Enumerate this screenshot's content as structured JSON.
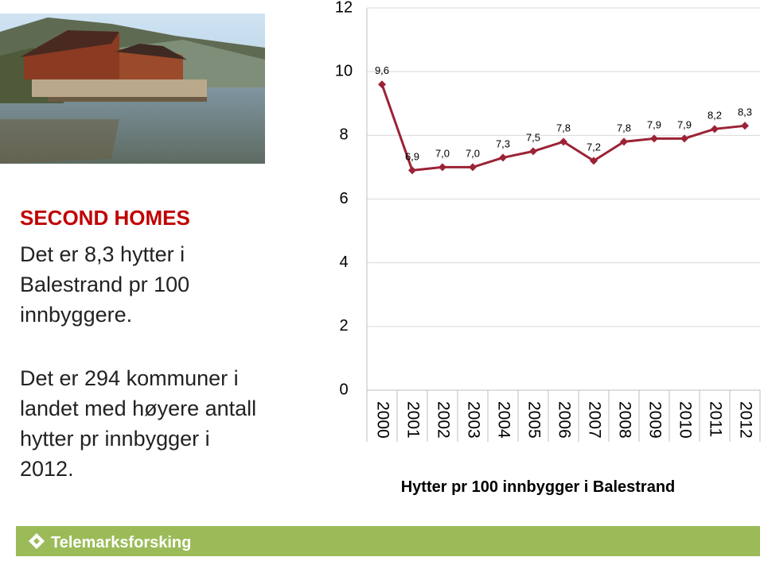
{
  "text": {
    "heading": "SECOND HOMES",
    "paragraph1": [
      "Det er 8,3 hytter i",
      "Balestrand pr 100",
      "innbyggere."
    ],
    "paragraph2": [
      "Det er 294 kommuner i",
      "landet med høyere antall",
      "hytter pr innbygger i",
      "2012."
    ]
  },
  "footer": {
    "logo": "Telemarksforsking"
  },
  "chart_data": {
    "type": "line",
    "x_label": "Hytter pr 100 innbygger i Balestrand",
    "categories": [
      "2000",
      "2001",
      "2002",
      "2003",
      "2004",
      "2005",
      "2006",
      "2007",
      "2008",
      "2009",
      "2010",
      "2011",
      "2012"
    ],
    "values": [
      9.6,
      6.9,
      7.0,
      7.0,
      7.3,
      7.5,
      7.8,
      7.2,
      7.8,
      7.9,
      7.9,
      8.2,
      8.3
    ],
    "value_labels": [
      "9,6",
      "6,9",
      "7,0",
      "7,0",
      "7,3",
      "7,5",
      "7,8",
      "7,2",
      "7,8",
      "7,9",
      "7,9",
      "8,2",
      "8,3"
    ],
    "color": "#9b2335",
    "ylim": [
      0,
      12
    ],
    "yticks": [
      0,
      2,
      4,
      6,
      8,
      10,
      12
    ],
    "grid": true
  }
}
